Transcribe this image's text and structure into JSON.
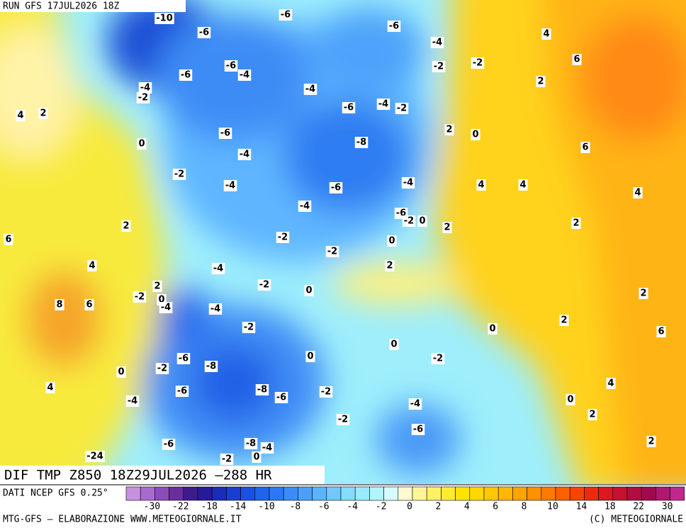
{
  "header": {
    "run": "RUN GFS 17JUL2026 18Z"
  },
  "map": {
    "title": "DIF TMP Z850 18Z29JUL2026 –288 HR",
    "contour_labels": [
      -10,
      -6,
      -6,
      -6,
      4,
      -4,
      6,
      -2,
      -2,
      -6,
      -4,
      -6,
      2,
      -4,
      -2,
      -4,
      -6,
      -4,
      -2,
      4,
      2,
      2,
      0,
      -6,
      -8,
      0,
      6,
      -4,
      -2,
      -4,
      -4,
      -6,
      4,
      4,
      4,
      -4,
      -6,
      -2,
      0,
      2,
      2,
      2,
      6,
      -2,
      0,
      -2,
      4,
      -4,
      2,
      2,
      -2,
      0,
      2,
      -2,
      0,
      -4,
      8,
      6,
      -4,
      2,
      -2,
      0,
      6,
      0,
      0,
      -6,
      -2,
      -8,
      -2,
      0,
      4,
      -8,
      -6,
      -6,
      -2,
      4,
      -4,
      0,
      -4,
      2,
      -2,
      -6,
      2,
      -6,
      -8,
      -4,
      -24,
      -2,
      0
    ]
  },
  "legend": {
    "source": "DATI NCEP GFS 0.25°",
    "ticks": [
      -30,
      -22,
      -18,
      -14,
      -10,
      -8,
      -6,
      -4,
      -2,
      0,
      2,
      4,
      6,
      8,
      10,
      14,
      18,
      22,
      30
    ]
  },
  "footer": {
    "credit": "MTG-GFS – ELABORAZIONE WWW.METEOGIORNALE.IT",
    "copyright": "(C) METEOGIORNALE"
  }
}
